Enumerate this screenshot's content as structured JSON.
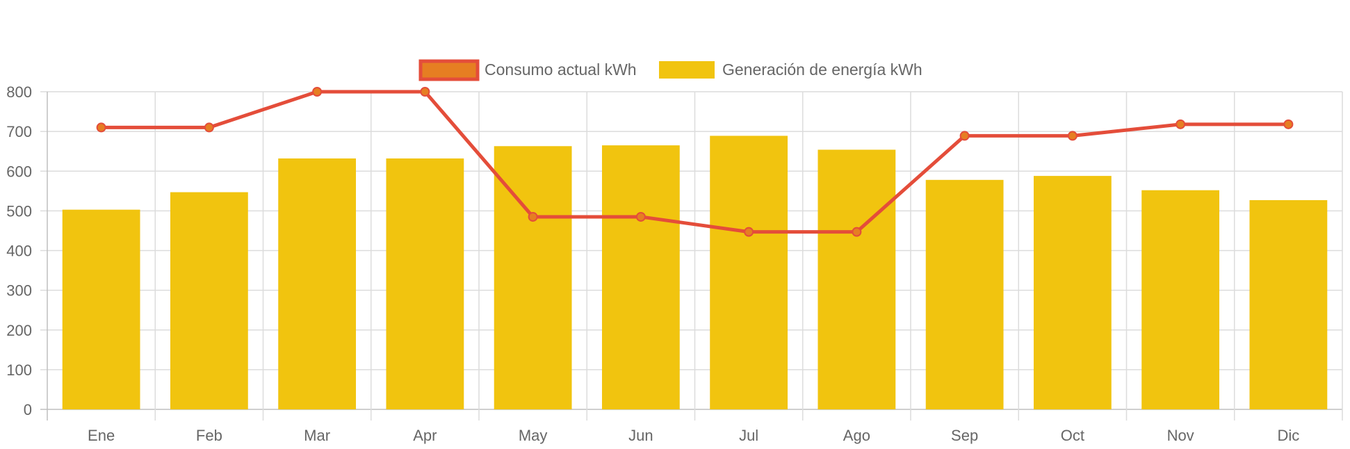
{
  "chart_data": {
    "type": "bar",
    "categories": [
      "Ene",
      "Feb",
      "Mar",
      "Apr",
      "May",
      "Jun",
      "Jul",
      "Ago",
      "Sep",
      "Oct",
      "Nov",
      "Dic"
    ],
    "series": [
      {
        "name": "Consumo actual kWh",
        "type": "line",
        "values": [
          710,
          710,
          800,
          800,
          485,
          485,
          447,
          447,
          689,
          689,
          718,
          718
        ],
        "color": "#e44d3a",
        "fill": "#e67e22"
      },
      {
        "name": "Generación de energía kWh",
        "type": "bar",
        "values": [
          503,
          547,
          632,
          632,
          663,
          665,
          689,
          654,
          578,
          588,
          552,
          527
        ],
        "color": "#f1c40f"
      }
    ],
    "yticks": [
      "0",
      "100",
      "200",
      "300",
      "400",
      "500",
      "600",
      "700",
      "800"
    ],
    "ylim": [
      0,
      800
    ],
    "grid": true,
    "legend_position": "top-center"
  }
}
